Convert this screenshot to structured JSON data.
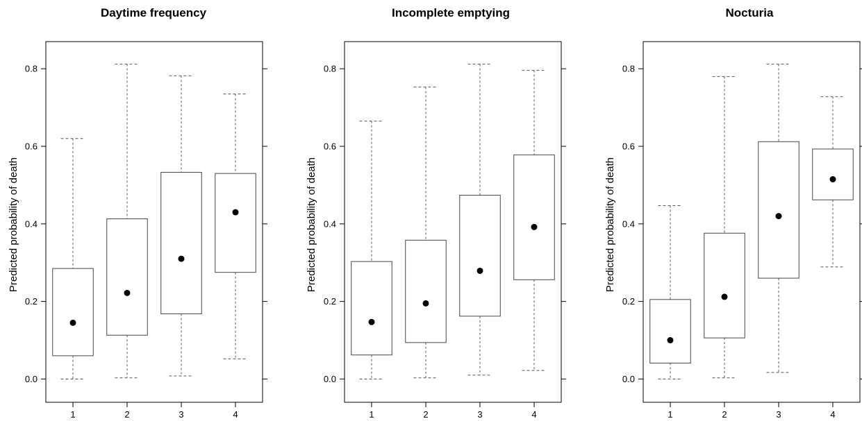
{
  "chart_data": [
    {
      "type": "box",
      "title": "Daytime frequency",
      "ylabel": "Predicted probability of death",
      "xlabel": "",
      "categories": [
        "1",
        "2",
        "3",
        "4"
      ],
      "yticks": [
        "0.0",
        "0.2",
        "0.4",
        "0.6",
        "0.8"
      ],
      "ylim": [
        -0.06,
        0.87
      ],
      "boxes": [
        {
          "min": 0.0,
          "q1": 0.06,
          "q3": 0.285,
          "max": 0.62,
          "point": 0.145
        },
        {
          "min": 0.003,
          "q1": 0.113,
          "q3": 0.413,
          "max": 0.812,
          "point": 0.222
        },
        {
          "min": 0.008,
          "q1": 0.168,
          "q3": 0.533,
          "max": 0.782,
          "point": 0.31
        },
        {
          "min": 0.052,
          "q1": 0.275,
          "q3": 0.53,
          "max": 0.735,
          "point": 0.43
        }
      ]
    },
    {
      "type": "box",
      "title": "Incomplete emptying",
      "ylabel": "Predicted probability of death",
      "xlabel": "",
      "categories": [
        "1",
        "2",
        "3",
        "4"
      ],
      "yticks": [
        "0.0",
        "0.2",
        "0.4",
        "0.6",
        "0.8"
      ],
      "ylim": [
        -0.06,
        0.87
      ],
      "boxes": [
        {
          "min": 0.0,
          "q1": 0.062,
          "q3": 0.303,
          "max": 0.665,
          "point": 0.147
        },
        {
          "min": 0.003,
          "q1": 0.094,
          "q3": 0.358,
          "max": 0.753,
          "point": 0.195
        },
        {
          "min": 0.01,
          "q1": 0.162,
          "q3": 0.474,
          "max": 0.812,
          "point": 0.279
        },
        {
          "min": 0.022,
          "q1": 0.256,
          "q3": 0.578,
          "max": 0.796,
          "point": 0.392
        }
      ]
    },
    {
      "type": "box",
      "title": "Nocturia",
      "ylabel": "Predicted probability of death",
      "xlabel": "",
      "categories": [
        "1",
        "2",
        "3",
        "4"
      ],
      "yticks": [
        "0.0",
        "0.2",
        "0.4",
        "0.6",
        "0.8"
      ],
      "ylim": [
        -0.06,
        0.87
      ],
      "boxes": [
        {
          "min": 0.0,
          "q1": 0.041,
          "q3": 0.205,
          "max": 0.447,
          "point": 0.1
        },
        {
          "min": 0.003,
          "q1": 0.106,
          "q3": 0.376,
          "max": 0.78,
          "point": 0.212
        },
        {
          "min": 0.017,
          "q1": 0.26,
          "q3": 0.612,
          "max": 0.812,
          "point": 0.42
        },
        {
          "min": 0.289,
          "q1": 0.462,
          "q3": 0.593,
          "max": 0.728,
          "point": 0.515
        }
      ]
    }
  ]
}
